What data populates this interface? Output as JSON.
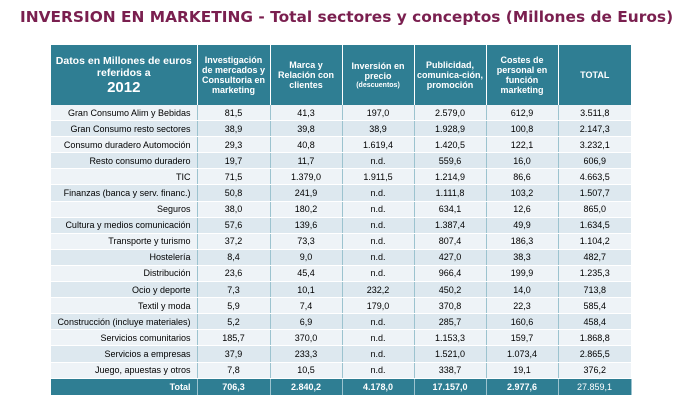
{
  "title": "INVERSION EN MARKETING - Total sectores y conceptos  (Millones de Euros)",
  "header": {
    "corner": "Datos en Millones de euros referidos a",
    "year": "2012",
    "cols": [
      {
        "label": "Investigación de mercados y Consultoria en  marketing",
        "sub": ""
      },
      {
        "label": "Marca y Relación con clientes",
        "sub": ""
      },
      {
        "label": "Inversión en precio",
        "sub": "(descuentos)"
      },
      {
        "label": "Publicidad, comunica-ción, promoción",
        "sub": ""
      },
      {
        "label": "Costes de personal en función marketing",
        "sub": ""
      },
      {
        "label": "TOTAL",
        "sub": ""
      }
    ]
  },
  "rows": [
    [
      "Gran Consumo Alim y Bebidas",
      "81,5",
      "41,3",
      "197,0",
      "2.579,0",
      "612,9",
      "3.511,8"
    ],
    [
      "Gran Consumo resto sectores",
      "38,9",
      "39,8",
      "38,9",
      "1.928,9",
      "100,8",
      "2.147,3"
    ],
    [
      "Consumo duradero Automoción",
      "29,3",
      "40,8",
      "1.619,4",
      "1.420,5",
      "122,1",
      "3.232,1"
    ],
    [
      "Resto consumo duradero",
      "19,7",
      "11,7",
      "n.d.",
      "559,6",
      "16,0",
      "606,9"
    ],
    [
      "TIC",
      "71,5",
      "1.379,0",
      "1.911,5",
      "1.214,9",
      "86,6",
      "4.663,5"
    ],
    [
      "Finanzas (banca y serv. financ.)",
      "50,8",
      "241,9",
      "n.d.",
      "1.111,8",
      "103,2",
      "1.507,7"
    ],
    [
      "Seguros",
      "38,0",
      "180,2",
      "n.d.",
      "634,1",
      "12,6",
      "865,0"
    ],
    [
      "Cultura y medios comunicación",
      "57,6",
      "139,6",
      "n.d.",
      "1.387,4",
      "49,9",
      "1.634,5"
    ],
    [
      "Transporte y turismo",
      "37,2",
      "73,3",
      "n.d.",
      "807,4",
      "186,3",
      "1.104,2"
    ],
    [
      "Hostelería",
      "8,4",
      "9,0",
      "n.d.",
      "427,0",
      "38,3",
      "482,7"
    ],
    [
      "Distribución",
      "23,6",
      "45,4",
      "n.d.",
      "966,4",
      "199,9",
      "1.235,3"
    ],
    [
      "Ocio y deporte",
      "7,3",
      "10,1",
      "232,2",
      "450,2",
      "14,0",
      "713,8"
    ],
    [
      "Textil y moda",
      "5,9",
      "7,4",
      "179,0",
      "370,8",
      "22,3",
      "585,4"
    ],
    [
      "Construcción (incluye materiales)",
      "5,2",
      "6,9",
      "n.d.",
      "285,7",
      "160,6",
      "458,4"
    ],
    [
      "Servicios comunitarios",
      "185,7",
      "370,0",
      "n.d.",
      "1.153,3",
      "159,7",
      "1.868,8"
    ],
    [
      "Servicios a empresas",
      "37,9",
      "233,3",
      "n.d.",
      "1.521,0",
      "1.073,4",
      "2.865,5"
    ],
    [
      "Juego,  apuestas y otros",
      "7,8",
      "10,5",
      "n.d.",
      "338,7",
      "19,1",
      "376,2"
    ]
  ],
  "total": [
    "Total",
    "706,3",
    "2.840,2",
    "4.178,0",
    "17.157,0",
    "2.977,6",
    "27.859,1"
  ],
  "colors": {
    "title": "#7a1f4f",
    "header_bg": "#2f7e93",
    "row_light": "#eef3f7",
    "row_dark": "#dde8ef"
  }
}
